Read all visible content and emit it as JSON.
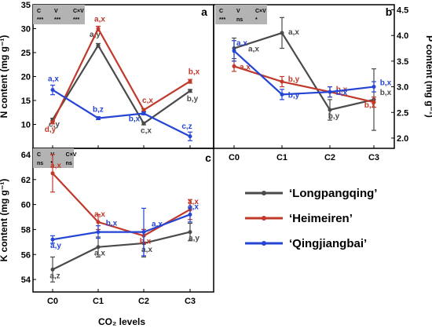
{
  "colors": {
    "Longpangqing": "#4a4a4a",
    "Heimeiren": "#c0392b",
    "Qingjiangbai": "#2545d4"
  },
  "x_axis_label": "CO₂ levels",
  "legend": [
    "‘Longpangqing’",
    "‘Heimeiren’",
    "‘Qingjiangbai’"
  ],
  "chart_data": [
    {
      "id": "a",
      "type": "line",
      "panel_label": "a",
      "ylabel": "N content (mg g⁻¹)",
      "ylim": [
        5,
        35
      ],
      "yticks": [
        10,
        15,
        20,
        25,
        30,
        35
      ],
      "categories": [
        "C0",
        "C1",
        "C2",
        "C3"
      ],
      "stats": {
        "headers": [
          "C",
          "V",
          "C×V"
        ],
        "values": [
          "***",
          "***",
          "***"
        ]
      },
      "series": [
        {
          "name": "‘Longpangqing’",
          "color": "#4a4a4a",
          "values": [
            11.0,
            26.5,
            10.2,
            17.0
          ],
          "errors": [
            0.3,
            0.4,
            0.3,
            0.3
          ],
          "labels": [
            "c,y",
            "a,y",
            "c,x",
            "b,y"
          ]
        },
        {
          "name": "‘Heimeiren’",
          "color": "#c0392b",
          "values": [
            10.4,
            30.0,
            13.0,
            19.0
          ],
          "errors": [
            0.3,
            0.5,
            0.3,
            0.4
          ],
          "labels": [
            "d,y",
            "a,x",
            "c,x",
            "b,x"
          ]
        },
        {
          "name": "‘Qingjiangbai’",
          "color": "#2545d4",
          "values": [
            17.2,
            11.3,
            12.3,
            7.5
          ],
          "errors": [
            1.0,
            0.3,
            0.3,
            0.9
          ],
          "labels": [
            "a,x",
            "b,z",
            "b,x",
            "c,z"
          ]
        }
      ]
    },
    {
      "id": "b",
      "type": "line",
      "panel_label": "b",
      "ylabel": "P content (mg g⁻¹)",
      "ylim": [
        1.8,
        4.6
      ],
      "yticks": [
        2.0,
        2.5,
        3.0,
        3.5,
        4.0,
        4.5
      ],
      "tick_format": "0.0",
      "categories": [
        "C0",
        "C1",
        "C2",
        "C3"
      ],
      "stats": {
        "headers": [
          "C",
          "V",
          "C×V"
        ],
        "values": [
          "***",
          "ns",
          "*"
        ]
      },
      "series": [
        {
          "name": "‘Longpangqing’",
          "color": "#4a4a4a",
          "values": [
            3.75,
            4.05,
            2.55,
            2.75
          ],
          "errors": [
            0.2,
            0.3,
            0.2,
            0.6
          ],
          "labels": [
            "a,x",
            "a,x",
            "b,y",
            "b,x"
          ]
        },
        {
          "name": "‘Heimeiren’",
          "color": "#c0392b",
          "values": [
            3.4,
            3.1,
            2.9,
            2.7
          ],
          "errors": [
            0.1,
            0.1,
            0.1,
            0.1
          ],
          "labels": [
            "a,x",
            "b,y",
            "b,x",
            "b,x"
          ]
        },
        {
          "name": "‘Qingjiangbai’",
          "color": "#2545d4",
          "values": [
            3.7,
            2.85,
            2.9,
            3.0
          ],
          "errors": [
            0.2,
            0.1,
            0.1,
            0.1
          ],
          "labels": [
            "a,x",
            "b,y",
            "b,x",
            "b,x"
          ]
        }
      ]
    },
    {
      "id": "c",
      "type": "line",
      "panel_label": "c",
      "ylabel": "K content (mg g⁻¹)",
      "ylim": [
        53,
        64.5
      ],
      "yticks": [
        54,
        56,
        58,
        60,
        62,
        64
      ],
      "categories": [
        "C0",
        "C1",
        "C2",
        "C3"
      ],
      "stats": {
        "headers": [
          "C",
          "V",
          "C×V"
        ],
        "values": [
          "ns",
          "*",
          "ns"
        ]
      },
      "series": [
        {
          "name": "‘Longpangqing’",
          "color": "#4a4a4a",
          "values": [
            54.8,
            56.6,
            56.9,
            57.8
          ],
          "errors": [
            1.0,
            0.8,
            1.1,
            0.7
          ],
          "labels": [
            "a,z",
            "a,x",
            "a,x",
            "a,y"
          ]
        },
        {
          "name": "‘Heimeiren’",
          "color": "#c0392b",
          "values": [
            62.5,
            58.6,
            57.5,
            59.6
          ],
          "errors": [
            1.5,
            0.6,
            0.5,
            0.8
          ],
          "labels": [
            "a,x",
            "a,x",
            "b,x",
            "a,x"
          ]
        },
        {
          "name": "‘Qingjiangbai’",
          "color": "#2545d4",
          "values": [
            57.2,
            57.8,
            57.8,
            59.2
          ],
          "errors": [
            0.3,
            0.5,
            1.9,
            0.6
          ],
          "labels": [
            "a,y",
            "b,x",
            "a,x",
            "a,x"
          ]
        }
      ]
    }
  ]
}
